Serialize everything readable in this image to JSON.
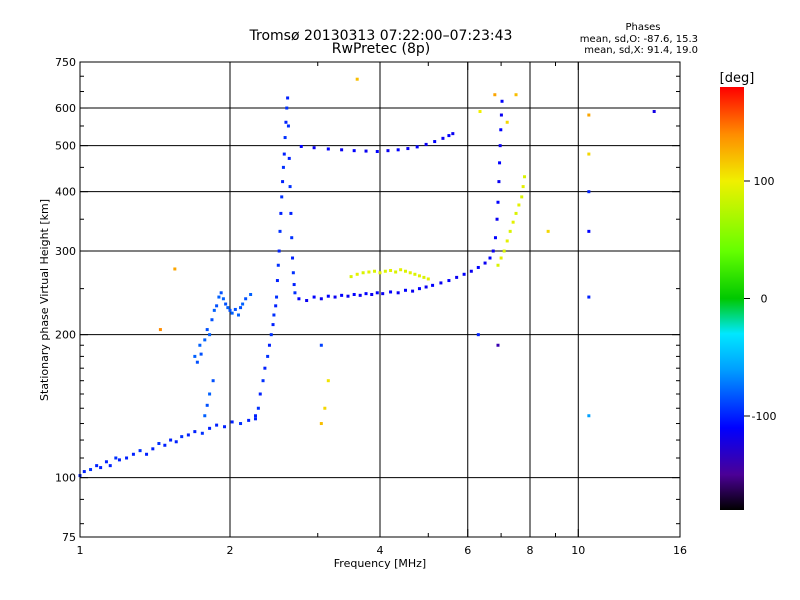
{
  "chart_data": {
    "type": "scatter",
    "title": "Tromsø 20130313 07:22:00–07:23:43",
    "subtitle": "RwPretec (8p)",
    "xlabel": "Frequency [MHz]",
    "ylabel": "Stationary phase Virtual Height [km]",
    "x_scale": "log",
    "y_scale": "log",
    "xlim": [
      1,
      16
    ],
    "ylim": [
      75,
      750
    ],
    "x_ticks": [
      1,
      2,
      4,
      6,
      8,
      10,
      16
    ],
    "x_tick_labels": [
      "1",
      "2",
      "4",
      "6",
      "8",
      "10",
      "16"
    ],
    "x_minor_ticks": [
      3,
      5,
      7,
      9
    ],
    "y_ticks": [
      75,
      100,
      200,
      300,
      400,
      500,
      600,
      750
    ],
    "y_tick_labels": [
      "75",
      "100",
      "200",
      "300",
      "400",
      "500",
      "600",
      "750"
    ],
    "y_minor_ticks": [
      80,
      90,
      110,
      120,
      130,
      140,
      150,
      160,
      170,
      180,
      190,
      250,
      350,
      450,
      550,
      650,
      700
    ],
    "grid": true,
    "legend": {
      "heading": "Phases",
      "line1": "mean, sd,O:  -87.6, 15.3",
      "line2": "mean, sd,X:  91.4, 19.0"
    },
    "colorbar": {
      "label": "[deg]",
      "range": [
        -180,
        180
      ],
      "ticks": [
        100,
        0,
        -100
      ],
      "tick_labels": [
        "100",
        "0",
        "-100"
      ],
      "stops": [
        {
          "v": -180,
          "color": "#000000"
        },
        {
          "v": -150,
          "color": "#4b0096"
        },
        {
          "v": -110,
          "color": "#0000ff"
        },
        {
          "v": -60,
          "color": "#00a0ff"
        },
        {
          "v": -30,
          "color": "#00e8ff"
        },
        {
          "v": 0,
          "color": "#00c800"
        },
        {
          "v": 40,
          "color": "#64ff00"
        },
        {
          "v": 100,
          "color": "#f0f000"
        },
        {
          "v": 140,
          "color": "#ff8c00"
        },
        {
          "v": 180,
          "color": "#ff0000"
        }
      ]
    },
    "series": [
      {
        "points": [
          [
            1.0,
            101,
            -100
          ],
          [
            1.02,
            103,
            -100
          ],
          [
            1.05,
            104,
            -95
          ],
          [
            1.08,
            106,
            -100
          ],
          [
            1.1,
            105,
            -100
          ],
          [
            1.13,
            108,
            -100
          ],
          [
            1.15,
            106,
            -100
          ],
          [
            1.18,
            110,
            -95
          ],
          [
            1.2,
            109,
            -100
          ],
          [
            1.24,
            110,
            -100
          ],
          [
            1.28,
            112,
            -100
          ],
          [
            1.32,
            114,
            -95
          ],
          [
            1.36,
            112,
            -100
          ],
          [
            1.4,
            115,
            -100
          ],
          [
            1.44,
            118,
            -95
          ],
          [
            1.48,
            117,
            -100
          ],
          [
            1.52,
            120,
            -100
          ],
          [
            1.56,
            119,
            -100
          ],
          [
            1.6,
            122,
            -95
          ],
          [
            1.65,
            123,
            -100
          ],
          [
            1.7,
            125,
            -100
          ],
          [
            1.76,
            124,
            -95
          ],
          [
            1.82,
            127,
            -100
          ],
          [
            1.88,
            129,
            -100
          ],
          [
            1.95,
            128,
            -100
          ],
          [
            2.02,
            131,
            -100
          ],
          [
            2.1,
            130,
            -95
          ],
          [
            2.18,
            132,
            -100
          ],
          [
            2.25,
            133,
            -100
          ],
          [
            1.7,
            180,
            -80
          ],
          [
            1.72,
            175,
            -85
          ],
          [
            1.74,
            190,
            -80
          ],
          [
            1.75,
            182,
            -85
          ],
          [
            1.78,
            195,
            -80
          ],
          [
            1.8,
            205,
            -85
          ],
          [
            1.82,
            200,
            -80
          ],
          [
            1.84,
            215,
            -85
          ],
          [
            1.86,
            225,
            -80
          ],
          [
            1.88,
            230,
            -85
          ],
          [
            1.9,
            240,
            -80
          ],
          [
            1.92,
            245,
            -85
          ],
          [
            1.94,
            238,
            -80
          ],
          [
            1.96,
            232,
            -85
          ],
          [
            1.98,
            228,
            -80
          ],
          [
            2.0,
            225,
            -85
          ],
          [
            2.02,
            222,
            -80
          ],
          [
            2.05,
            226,
            -85
          ],
          [
            2.08,
            220,
            -80
          ],
          [
            2.1,
            228,
            -85
          ],
          [
            2.12,
            232,
            -80
          ],
          [
            2.15,
            238,
            -85
          ],
          [
            2.2,
            243,
            -80
          ],
          [
            1.85,
            160,
            -85
          ],
          [
            1.82,
            150,
            -80
          ],
          [
            1.8,
            142,
            -85
          ],
          [
            1.78,
            135,
            -80
          ],
          [
            2.25,
            135,
            -100
          ],
          [
            2.28,
            140,
            -95
          ],
          [
            2.3,
            150,
            -100
          ],
          [
            2.33,
            160,
            -95
          ],
          [
            2.35,
            170,
            -100
          ],
          [
            2.38,
            180,
            -95
          ],
          [
            2.4,
            190,
            -100
          ],
          [
            2.42,
            200,
            -95
          ],
          [
            2.44,
            210,
            -100
          ],
          [
            2.45,
            220,
            -95
          ],
          [
            2.47,
            230,
            -100
          ],
          [
            2.48,
            240,
            -95
          ],
          [
            2.49,
            260,
            -100
          ],
          [
            2.5,
            280,
            -95
          ],
          [
            2.51,
            300,
            -100
          ],
          [
            2.52,
            330,
            -95
          ],
          [
            2.53,
            360,
            -100
          ],
          [
            2.54,
            390,
            -95
          ],
          [
            2.55,
            420,
            -100
          ],
          [
            2.56,
            450,
            -95
          ],
          [
            2.57,
            480,
            -100
          ],
          [
            2.58,
            520,
            -95
          ],
          [
            2.59,
            560,
            -100
          ],
          [
            2.6,
            600,
            -95
          ],
          [
            2.61,
            630,
            -100
          ],
          [
            2.62,
            550,
            -95
          ],
          [
            2.63,
            470,
            -100
          ],
          [
            2.64,
            410,
            -95
          ],
          [
            2.65,
            360,
            -100
          ],
          [
            2.66,
            320,
            -95
          ],
          [
            2.67,
            290,
            -100
          ],
          [
            2.68,
            270,
            -95
          ],
          [
            2.69,
            255,
            -100
          ],
          [
            2.7,
            245,
            -95
          ],
          [
            2.75,
            238,
            -110
          ],
          [
            2.85,
            236,
            -115
          ],
          [
            2.95,
            240,
            -110
          ],
          [
            3.05,
            238,
            -115
          ],
          [
            3.15,
            241,
            -110
          ],
          [
            3.25,
            240,
            -115
          ],
          [
            3.35,
            242,
            -110
          ],
          [
            3.45,
            241,
            -115
          ],
          [
            3.55,
            243,
            -110
          ],
          [
            3.65,
            242,
            -115
          ],
          [
            3.75,
            244,
            -110
          ],
          [
            3.85,
            243,
            -115
          ],
          [
            3.95,
            245,
            -110
          ],
          [
            4.05,
            244,
            -115
          ],
          [
            4.2,
            246,
            -110
          ],
          [
            4.35,
            245,
            -115
          ],
          [
            4.5,
            248,
            -110
          ],
          [
            4.65,
            247,
            -115
          ],
          [
            4.8,
            250,
            -110
          ],
          [
            4.95,
            252,
            -115
          ],
          [
            5.1,
            254,
            -110
          ],
          [
            5.3,
            257,
            -115
          ],
          [
            5.5,
            260,
            -110
          ],
          [
            5.7,
            264,
            -115
          ],
          [
            5.9,
            268,
            -110
          ],
          [
            6.1,
            272,
            -115
          ],
          [
            6.3,
            277,
            -110
          ],
          [
            6.5,
            283,
            -115
          ],
          [
            6.65,
            290,
            -110
          ],
          [
            6.75,
            300,
            -115
          ],
          [
            6.82,
            320,
            -110
          ],
          [
            6.87,
            350,
            -115
          ],
          [
            6.9,
            380,
            -110
          ],
          [
            6.93,
            420,
            -115
          ],
          [
            6.95,
            460,
            -110
          ],
          [
            6.97,
            500,
            -115
          ],
          [
            6.99,
            540,
            -110
          ],
          [
            7.01,
            580,
            -115
          ],
          [
            7.03,
            620,
            -110
          ],
          [
            2.78,
            498,
            -110
          ],
          [
            2.95,
            495,
            -115
          ],
          [
            3.15,
            492,
            -110
          ],
          [
            3.35,
            490,
            -115
          ],
          [
            3.55,
            488,
            -110
          ],
          [
            3.75,
            487,
            -115
          ],
          [
            3.95,
            486,
            -110
          ],
          [
            4.15,
            488,
            -115
          ],
          [
            4.35,
            490,
            -110
          ],
          [
            4.55,
            493,
            -115
          ],
          [
            4.75,
            497,
            -110
          ],
          [
            4.95,
            503,
            -115
          ],
          [
            5.15,
            510,
            -110
          ],
          [
            5.35,
            518,
            -115
          ],
          [
            5.5,
            525,
            -110
          ],
          [
            5.6,
            530,
            -115
          ],
          [
            3.5,
            265,
            90
          ],
          [
            3.6,
            268,
            95
          ],
          [
            3.7,
            270,
            90
          ],
          [
            3.8,
            271,
            95
          ],
          [
            3.9,
            272,
            90
          ],
          [
            4.0,
            270,
            95
          ],
          [
            4.1,
            272,
            90
          ],
          [
            4.2,
            273,
            95
          ],
          [
            4.3,
            271,
            90
          ],
          [
            4.4,
            274,
            95
          ],
          [
            4.5,
            272,
            90
          ],
          [
            4.6,
            270,
            95
          ],
          [
            4.7,
            268,
            90
          ],
          [
            4.8,
            266,
            95
          ],
          [
            4.9,
            264,
            90
          ],
          [
            5.0,
            262,
            95
          ],
          [
            6.9,
            280,
            90
          ],
          [
            7.0,
            290,
            95
          ],
          [
            7.1,
            300,
            90
          ],
          [
            7.2,
            315,
            95
          ],
          [
            7.3,
            330,
            90
          ],
          [
            7.4,
            345,
            95
          ],
          [
            7.5,
            360,
            90
          ],
          [
            7.6,
            375,
            95
          ],
          [
            7.7,
            390,
            90
          ],
          [
            7.75,
            410,
            95
          ],
          [
            7.8,
            430,
            90
          ],
          [
            3.1,
            140,
            110
          ],
          [
            3.15,
            160,
            105
          ],
          [
            3.05,
            130,
            120
          ],
          [
            3.6,
            690,
            120
          ],
          [
            6.35,
            590,
            100
          ],
          [
            6.8,
            640,
            130
          ],
          [
            7.2,
            560,
            110
          ],
          [
            7.5,
            640,
            120
          ],
          [
            8.7,
            330,
            110
          ],
          [
            10.5,
            580,
            130
          ],
          [
            10.5,
            480,
            110
          ],
          [
            10.5,
            400,
            -100
          ],
          [
            10.5,
            330,
            -110
          ],
          [
            10.5,
            240,
            -100
          ],
          [
            10.5,
            135,
            -60
          ],
          [
            14.2,
            590,
            -120
          ],
          [
            6.3,
            200,
            -100
          ],
          [
            6.9,
            190,
            -140
          ],
          [
            3.05,
            190,
            -90
          ],
          [
            1.55,
            275,
            130
          ],
          [
            1.45,
            205,
            140
          ]
        ]
      }
    ]
  }
}
